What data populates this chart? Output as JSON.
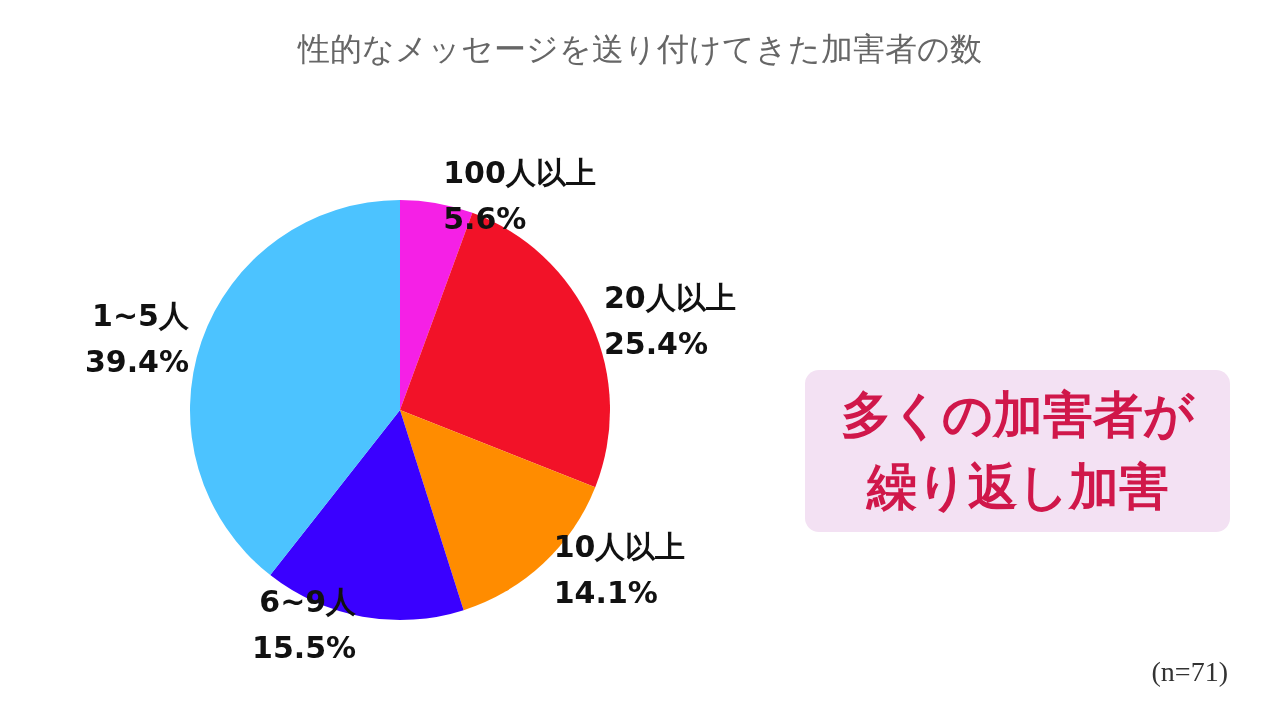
{
  "chart_data": {
    "type": "pie",
    "title": "性的なメッセージを送り付けてきた加害者の数",
    "categories": [
      "100人以上",
      "20人以上",
      "10人以上",
      "6~9人",
      "1~5人"
    ],
    "values": [
      5.6,
      25.4,
      14.1,
      15.5,
      39.4
    ],
    "colors": [
      "#f520e6",
      "#f21228",
      "#ff8c00",
      "#3a00ff",
      "#4cc3ff"
    ],
    "value_labels": [
      "5.6%",
      "25.4%",
      "14.1%",
      "15.5%",
      "39.4%"
    ],
    "legend": false,
    "annotations": [
      "多くの加害者が繰り返し加害",
      "(n=71)"
    ]
  }
}
